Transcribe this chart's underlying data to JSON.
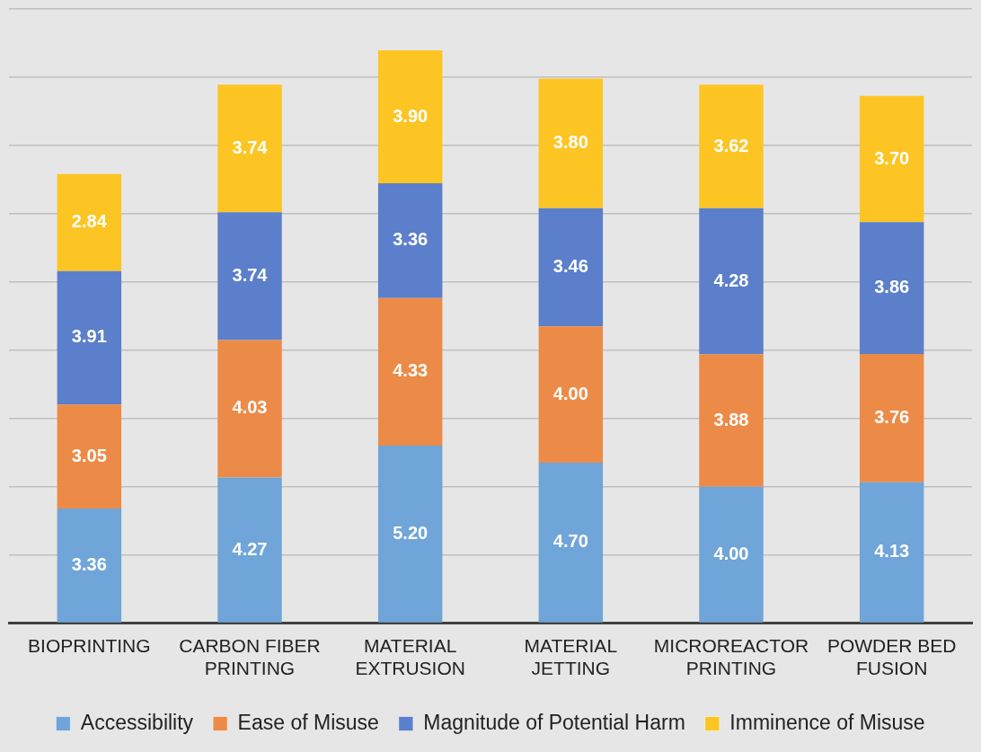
{
  "chart_data": {
    "type": "bar",
    "stacked": true,
    "categories": [
      "BIOPRINTING",
      "CARBON FIBER PRINTING",
      "MATERIAL EXTRUSION",
      "MATERIAL JETTING",
      "MICROREACTOR PRINTING",
      "POWDER BED FUSION"
    ],
    "series": [
      {
        "name": "Accessibility",
        "color": "#6fa5d8",
        "values": [
          3.36,
          4.27,
          5.2,
          4.7,
          4.0,
          4.13
        ],
        "value_labels": [
          "3.36",
          "4.27",
          "5.20",
          "4.70",
          "4.00",
          "4.13"
        ]
      },
      {
        "name": "Ease of Misuse",
        "color": "#ec8b47",
        "values": [
          3.05,
          4.03,
          4.33,
          4.0,
          3.88,
          3.76
        ],
        "value_labels": [
          "3.05",
          "4.03",
          "4.33",
          "4.00",
          "3.88",
          "3.76"
        ]
      },
      {
        "name": "Magnitude of Potential Harm",
        "color": "#5b7fca",
        "values": [
          3.91,
          3.74,
          3.36,
          3.46,
          4.28,
          3.86
        ],
        "value_labels": [
          "3.91",
          "3.74",
          "3.36",
          "3.46",
          "4.28",
          "3.86"
        ]
      },
      {
        "name": "Imminence of Misuse",
        "color": "#fcc523",
        "values": [
          2.84,
          3.74,
          3.9,
          3.8,
          3.62,
          3.7
        ],
        "value_labels": [
          "2.84",
          "3.74",
          "3.90",
          "3.80",
          "3.62",
          "3.70"
        ]
      }
    ],
    "ylim": [
      0,
      18
    ],
    "yticks": [
      {
        "value": 0,
        "label": null
      },
      {
        "value": 2,
        "label": null
      },
      {
        "value": 4,
        "label": null
      },
      {
        "value": 6,
        "label": null
      },
      {
        "value": 8,
        "label": null
      },
      {
        "value": 10,
        "label": null
      },
      {
        "value": 12,
        "label": null
      },
      {
        "value": 14,
        "label": null
      },
      {
        "value": 16,
        "label": null
      },
      {
        "value": 18,
        "label": null
      }
    ],
    "tick_labels": "x",
    "grid": "y",
    "legend": "bottom"
  }
}
